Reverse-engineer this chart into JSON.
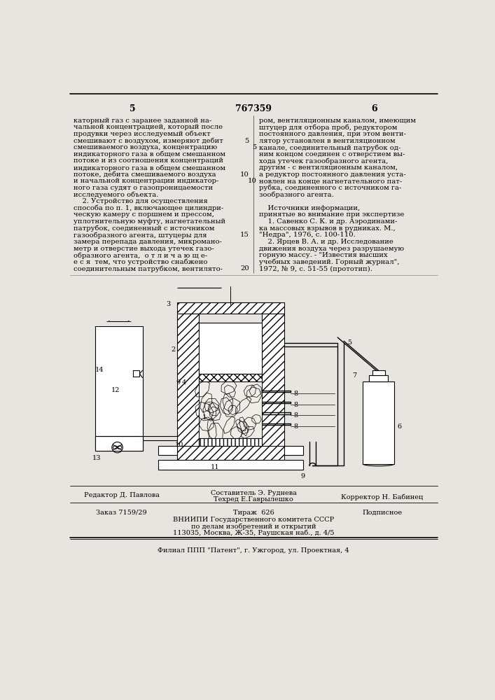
{
  "background_color": "#e8e5e0",
  "patent_number": "767359",
  "col_left_num": "5",
  "col_right_num": "6",
  "text_left_col": [
    "каторный газ с заранее заданной на-",
    "чальной концентрацией, который после",
    "продувки через исследуемый объект",
    "смешивают с воздухом, измеряют дебит",
    "смешиваемого воздуха, концентрацию",
    "индикаторного газа в общем смешанном",
    "потоке и из соотношения концентраций",
    "индикаторного газа в общем смешанном",
    "потоке, дебита смешиваемого воздуха",
    "и начальной концентрации индикатор-",
    "ного газа судят о газопроницаемости",
    "исследуемого объекта.",
    "    2. Устройство для осуществления",
    "способа по п. 1, включающее цилиндри-",
    "ческую камеру с поршнем и прессом,",
    "уплотнительную муфту, нагнетательный",
    "патрубок, соединенный с источником",
    "газообразного агента, штуцеры для",
    "замера перепада давления, микромано-",
    "метр и отверстие выхода утечек газо-",
    "образного агента,  о т л и ч а ю щ е-",
    "е с я  тем, что устройство снабжено",
    "соединительным патрубком, вентилято-"
  ],
  "text_right_col": [
    "ром, вентиляционным каналом, имеющим",
    "штуцер для отбора проб, редуктором",
    "постоянного давления, при этом венти-",
    "лятор установлен в вентиляционном",
    "канале, соединительный патрубок од-",
    "ним концом соединен с отверстием вы-",
    "хода утечек газообразного агента,",
    "другим - с вентиляционным каналом,",
    "а редуктор постоянного давления уста-",
    "новлен на конце нагнетательного пат-",
    "рубка, соединенного с источником га-",
    "зообразного агента.",
    "    Источники информации,",
    "принятые во внимание при экспертизе",
    "    1. Савенко С. К. и др. Аэродинами-",
    "ка массовых взрывов в рудниках. М.,",
    "\"Недра\", 1976, с. 100-110.",
    "    2. Ярцев В. А. и др. Исследование",
    "движения воздуха через разрушаемую",
    "горную массу. - \"Известия высших",
    "учебных заведений. Горный журнал\",",
    "1972, № 9, с. 51-55 (прототип)."
  ],
  "line_numbers": {
    "4": "5",
    "9": "10",
    "17": "15",
    "22": "20"
  },
  "footer_editor": "Редактор Д. Павлова",
  "footer_compiler": "Составитель Э. Руднева",
  "footer_techred": "Техред Е.Гаврылешко",
  "footer_corrector": "Корректор Н. Бабинец",
  "footer_order": "Заказ 7159/29",
  "footer_edition": "Тираж  626",
  "footer_subscribed": "Подписное",
  "footer_org1": "ВНИИПИ Государственного комитета СССР",
  "footer_org2": "по делам изобретений и открытий",
  "footer_org3": "113035, Москва, Ж-35, Раушская наб., д. 4/5",
  "footer_branch": "Филиал ППП \"Патент\", г. Ужгород, ул. Проектная, 4"
}
